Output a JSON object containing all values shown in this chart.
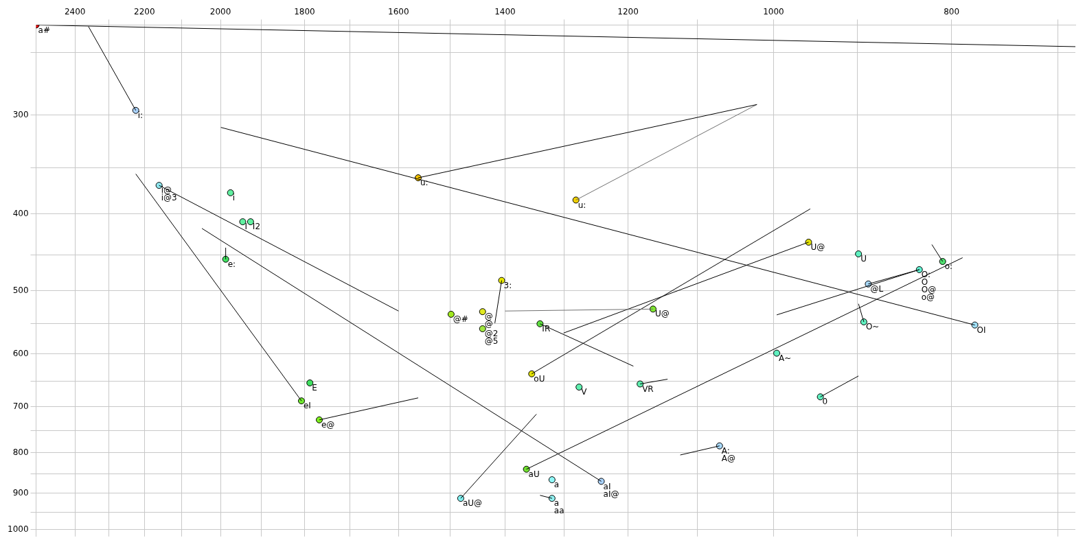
{
  "chart_data": {
    "type": "scatter",
    "log": "xy",
    "grid": true,
    "marker": "circle",
    "xlim": [
      2520,
      685
    ],
    "ylim": [
      1020,
      231
    ],
    "xticks": [
      2400,
      {
        "value": 2300,
        "label": null
      },
      2200,
      {
        "value": 2100,
        "label": null
      },
      2000,
      {
        "value": 1900,
        "label": null
      },
      1800,
      {
        "value": 1700,
        "label": null
      },
      1600,
      {
        "value": 1500,
        "label": null
      },
      1400,
      {
        "value": 1300,
        "label": null
      },
      1200,
      {
        "value": 1100,
        "label": null
      },
      1000,
      {
        "value": 900,
        "label": null
      },
      800,
      {
        "value": 700,
        "label": null
      }
    ],
    "yticks": [
      {
        "value": 250,
        "label": null
      },
      300,
      {
        "value": 350,
        "label": null
      },
      400,
      {
        "value": 450,
        "label": null
      },
      500,
      {
        "value": 550,
        "label": null
      },
      600,
      {
        "value": 650,
        "label": null
      },
      700,
      {
        "value": 750,
        "label": null
      },
      800,
      {
        "value": 850,
        "label": null
      },
      900,
      {
        "value": 950,
        "label": null
      },
      1000
    ],
    "series": [
      {
        "type": "line",
        "marker": "none",
        "x": [
          2520,
          685
        ],
        "values": [
          231,
          246
        ],
        "color": "#000000"
      },
      {
        "type": "line",
        "marker": "none",
        "x": [
          2224,
          2360
        ],
        "values": [
          296,
          232
        ],
        "color": "#000000"
      },
      {
        "type": "line",
        "marker": "none",
        "x": [
          1807,
          2224
        ],
        "values": [
          688,
          356
        ],
        "color": "#000000"
      },
      {
        "type": "line",
        "marker": "none",
        "x": [
          2160,
          1600
        ],
        "values": [
          368,
          530
        ],
        "color": "#000000"
      },
      {
        "type": "line",
        "marker": "none",
        "x": [
          1987,
          1987
        ],
        "values": [
          456,
          441
        ],
        "color": "#000000"
      },
      {
        "type": "line",
        "marker": "none",
        "x": [
          1241,
          2047
        ],
        "values": [
          869,
          417
        ],
        "color": "#000000"
      },
      {
        "type": "line",
        "marker": "none",
        "x": [
          777,
          1999
        ],
        "values": [
          552,
          311
        ],
        "color": "#000000"
      },
      {
        "type": "line",
        "marker": "none",
        "x": [
          1561,
          1021
        ],
        "values": [
          360,
          291
        ],
        "color": "#000000"
      },
      {
        "type": "line",
        "marker": "none",
        "x": [
          1281,
          1021
        ],
        "values": [
          384,
          291
        ],
        "color": "#707070"
      },
      {
        "type": "line",
        "marker": "none",
        "x": [
          1767,
          1561
        ],
        "values": [
          727,
          682
        ],
        "color": "#000000"
      },
      {
        "type": "line",
        "marker": "none",
        "x": [
          1406,
          1418
        ],
        "values": [
          485,
          549
        ],
        "color": "#000000"
      },
      {
        "type": "line",
        "marker": "none",
        "x": [
          1163,
          1400
        ],
        "values": [
          527,
          530
        ],
        "color": "#707070"
      },
      {
        "type": "line",
        "marker": "none",
        "x": [
          1340,
          1192
        ],
        "values": [
          550,
          622
        ],
        "color": "#000000"
      },
      {
        "type": "line",
        "marker": "none",
        "x": [
          1182,
          1142
        ],
        "values": [
          655,
          646
        ],
        "color": "#000000"
      },
      {
        "type": "line",
        "marker": "none",
        "x": [
          1480,
          1346
        ],
        "values": [
          913,
          715
        ],
        "color": "#000000"
      },
      {
        "type": "line",
        "marker": "none",
        "x": [
          1320,
          1340
        ],
        "values": [
          913,
          905
        ],
        "color": "#000000"
      },
      {
        "type": "line",
        "marker": "none",
        "x": [
          957,
          1301
        ],
        "values": [
          434,
          565
        ],
        "color": "#000000"
      },
      {
        "type": "line",
        "marker": "none",
        "x": [
          1354,
          955
        ],
        "values": [
          636,
          394
        ],
        "color": "#000000"
      },
      {
        "type": "line",
        "marker": "none",
        "x": [
          1363,
          789
        ],
        "values": [
          839,
          454
        ],
        "color": "#000000"
      },
      {
        "type": "line",
        "marker": "none",
        "x": [
          809,
          820
        ],
        "values": [
          459,
          437
        ],
        "color": "#000000"
      },
      {
        "type": "line",
        "marker": "none",
        "x": [
          888,
          833
        ],
        "values": [
          490,
          470
        ],
        "color": "#000000"
      },
      {
        "type": "line",
        "marker": "none",
        "x": [
          833,
          996
        ],
        "values": [
          470,
          536
        ],
        "color": "#000000"
      },
      {
        "type": "line",
        "marker": "none",
        "x": [
          893,
          899
        ],
        "values": [
          547,
          519
        ],
        "color": "#000000"
      },
      {
        "type": "line",
        "marker": "none",
        "x": [
          943,
          899
        ],
        "values": [
          680,
          640
        ],
        "color": "#000000"
      },
      {
        "type": "line",
        "marker": "none",
        "x": [
          1070,
          1124
        ],
        "values": [
          784,
          805
        ],
        "color": "#000000"
      },
      {
        "type": "scatter",
        "x": [
          2520,
          2224,
          2160,
          1975,
          1945,
          1926,
          1987,
          1788,
          1807,
          1767,
          1561,
          1281,
          1406,
          1498,
          1440,
          1440,
          1340,
          1163,
          957,
          1354,
          1276,
          1182,
          1363,
          1480,
          1320,
          1320,
          1241,
          1070,
          899,
          809,
          833,
          888,
          893,
          777,
          996,
          943
        ],
        "values": [
          231,
          296,
          368,
          376,
          409,
          409,
          456,
          653,
          688,
          727,
          360,
          384,
          485,
          535,
          531,
          558,
          550,
          527,
          434,
          636,
          661,
          655,
          839,
          913,
          865,
          913,
          869,
          784,
          449,
          459,
          470,
          490,
          547,
          552,
          599,
          680
        ],
        "colors": [
          "#e00000",
          "#a8d0f8",
          "#90e8f0",
          "#60f0a0",
          "#60f0a0",
          "#60f0a0",
          "#40e060",
          "#40e060",
          "#70e830",
          "#80f020",
          "#f0c000",
          "#f0d000",
          "#e8e800",
          "#a0e820",
          "#e0e820",
          "#a0e840",
          "#60e040",
          "#80e830",
          "#e0e000",
          "#e0e000",
          "#60f0b0",
          "#60f0b0",
          "#70e030",
          "#80f0f0",
          "#90f8f8",
          "#90f0f0",
          "#a8d0f8",
          "#a8d8f8",
          "#60f0c0",
          "#50e070",
          "#60f0d0",
          "#a8d8f8",
          "#60f0c0",
          "#a0e0f8",
          "#60f0c0",
          "#60f0c0"
        ]
      }
    ],
    "annotations": [
      {
        "text": "a#",
        "x": 2520,
        "y": 231
      },
      {
        "text": "i:",
        "x": 2224,
        "y": 296
      },
      {
        "text": "i@",
        "x": 2160,
        "y": 368
      },
      {
        "text": "i@3",
        "x": 2160,
        "y": 368
      },
      {
        "text": "i",
        "x": 1975,
        "y": 376
      },
      {
        "text": "I",
        "x": 1945,
        "y": 409
      },
      {
        "text": "I2",
        "x": 1926,
        "y": 409
      },
      {
        "text": "e:",
        "x": 1987,
        "y": 456
      },
      {
        "text": "E",
        "x": 1788,
        "y": 653
      },
      {
        "text": "eI",
        "x": 1807,
        "y": 688
      },
      {
        "text": "e@",
        "x": 1767,
        "y": 727
      },
      {
        "text": "u:",
        "x": 1561,
        "y": 360
      },
      {
        "text": "u:",
        "x": 1281,
        "y": 384
      },
      {
        "text": "3:",
        "x": 1406,
        "y": 485
      },
      {
        "text": "@#",
        "x": 1498,
        "y": 535
      },
      {
        "text": "@",
        "x": 1440,
        "y": 531
      },
      {
        "text": "@",
        "x": 1440,
        "y": 531
      },
      {
        "text": "@2",
        "x": 1440,
        "y": 558
      },
      {
        "text": "@5",
        "x": 1440,
        "y": 558
      },
      {
        "text": "IR",
        "x": 1340,
        "y": 550
      },
      {
        "text": "U@",
        "x": 1163,
        "y": 527
      },
      {
        "text": "U@",
        "x": 957,
        "y": 434
      },
      {
        "text": "oU",
        "x": 1354,
        "y": 636
      },
      {
        "text": "V",
        "x": 1276,
        "y": 661
      },
      {
        "text": "VR",
        "x": 1182,
        "y": 655
      },
      {
        "text": "aU",
        "x": 1363,
        "y": 839
      },
      {
        "text": "aU@",
        "x": 1480,
        "y": 913
      },
      {
        "text": "a",
        "x": 1320,
        "y": 865
      },
      {
        "text": "a",
        "x": 1320,
        "y": 913
      },
      {
        "text": "aa",
        "x": 1320,
        "y": 913
      },
      {
        "text": "aI",
        "x": 1241,
        "y": 869
      },
      {
        "text": "aI@",
        "x": 1241,
        "y": 869
      },
      {
        "text": "A:",
        "x": 1070,
        "y": 784
      },
      {
        "text": "A@",
        "x": 1070,
        "y": 784
      },
      {
        "text": "U",
        "x": 899,
        "y": 449
      },
      {
        "text": "o:",
        "x": 809,
        "y": 459
      },
      {
        "text": "O:",
        "x": 833,
        "y": 470
      },
      {
        "text": "O",
        "x": 833,
        "y": 470
      },
      {
        "text": "O@",
        "x": 833,
        "y": 470
      },
      {
        "text": "o@",
        "x": 833,
        "y": 470
      },
      {
        "text": "@L",
        "x": 888,
        "y": 490
      },
      {
        "text": "O~",
        "x": 893,
        "y": 547
      },
      {
        "text": "OI",
        "x": 777,
        "y": 552
      },
      {
        "text": "A~",
        "x": 996,
        "y": 599
      },
      {
        "text": "0",
        "x": 943,
        "y": 680
      }
    ]
  }
}
